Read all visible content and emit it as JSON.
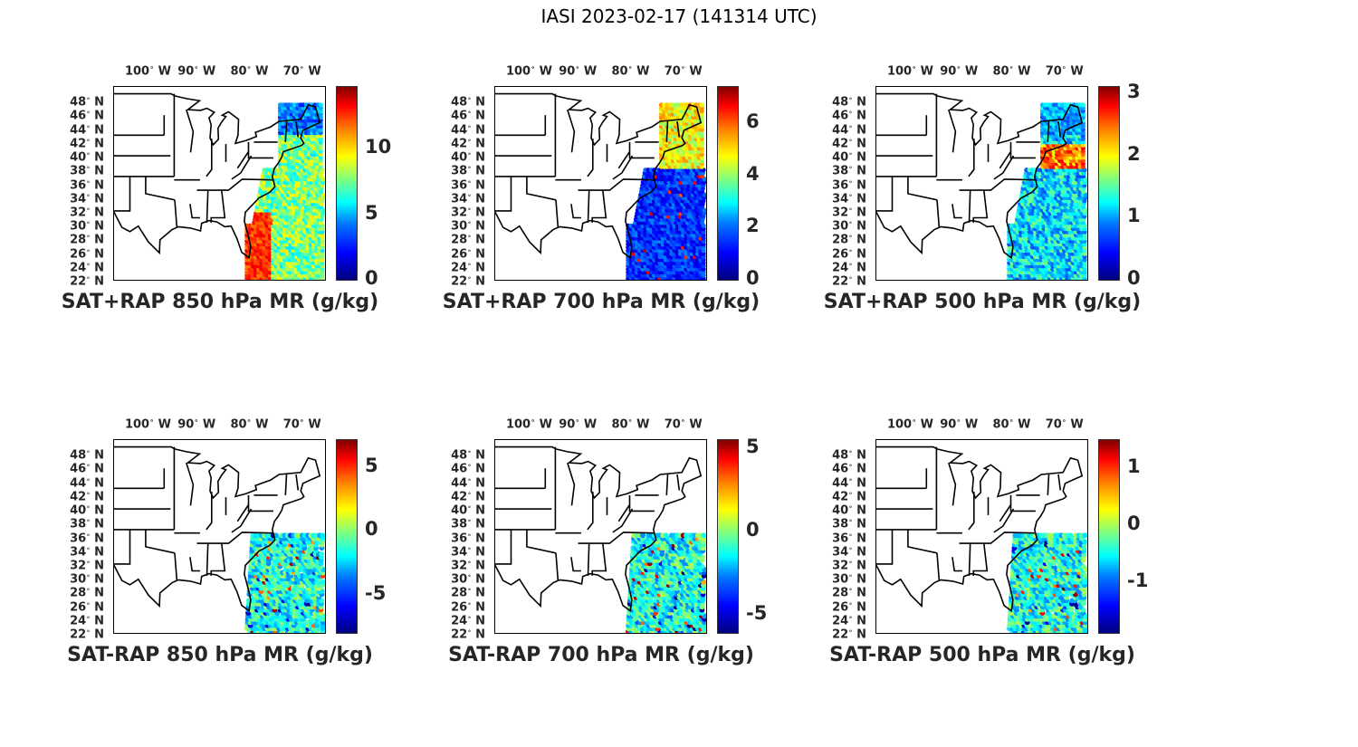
{
  "figure": {
    "title": "IASI 2023-02-17 (141314 UTC)",
    "map": {
      "lon_range": [
        -106,
        -66
      ],
      "lat_range": [
        22,
        50
      ],
      "lon_ticks": [
        {
          "deg": "100",
          "dir": "W",
          "lon": -100
        },
        {
          "deg": "90",
          "dir": "W",
          "lon": -90
        },
        {
          "deg": "80",
          "dir": "W",
          "lon": -80
        },
        {
          "deg": "70",
          "dir": "W",
          "lon": -70
        }
      ],
      "lat_ticks": [
        {
          "deg": "48",
          "dir": "N",
          "lat": 48
        },
        {
          "deg": "46",
          "dir": "N",
          "lat": 46
        },
        {
          "deg": "44",
          "dir": "N",
          "lat": 44
        },
        {
          "deg": "42",
          "dir": "N",
          "lat": 42
        },
        {
          "deg": "40",
          "dir": "N",
          "lat": 40
        },
        {
          "deg": "38",
          "dir": "N",
          "lat": 38
        },
        {
          "deg": "36",
          "dir": "N",
          "lat": 36
        },
        {
          "deg": "34",
          "dir": "N",
          "lat": 34
        },
        {
          "deg": "32",
          "dir": "N",
          "lat": 32
        },
        {
          "deg": "30",
          "dir": "N",
          "lat": 30
        },
        {
          "deg": "28",
          "dir": "N",
          "lat": 28
        },
        {
          "deg": "26",
          "dir": "N",
          "lat": 26
        },
        {
          "deg": "24",
          "dir": "N",
          "lat": 24
        },
        {
          "deg": "22",
          "dir": "N",
          "lat": 22
        }
      ]
    },
    "colormap": "jet",
    "panels": [
      {
        "title": "SAT+RAP 850 hPa MR (g/kg)",
        "clim": [
          0,
          14.7
        ],
        "cticks": [
          {
            "label": "0",
            "v": 0
          },
          {
            "label": "5",
            "v": 5
          },
          {
            "label": "10",
            "v": 10
          }
        ],
        "swath": "full-north"
      },
      {
        "title": "SAT+RAP 700 hPa MR (g/kg)",
        "clim": [
          0,
          7.4
        ],
        "cticks": [
          {
            "label": "0",
            "v": 0
          },
          {
            "label": "2",
            "v": 2
          },
          {
            "label": "4",
            "v": 4
          },
          {
            "label": "6",
            "v": 6
          }
        ],
        "swath": "full-north"
      },
      {
        "title": "SAT+RAP 500 hPa MR (g/kg)",
        "clim": [
          0,
          3.1
        ],
        "cticks": [
          {
            "label": "0",
            "v": 0
          },
          {
            "label": "1",
            "v": 1
          },
          {
            "label": "2",
            "v": 2
          },
          {
            "label": "3",
            "v": 3
          }
        ],
        "swath": "full-north"
      },
      {
        "title": "SAT-RAP 850 hPa MR (g/kg)",
        "clim": [
          -8,
          7.1
        ],
        "cticks": [
          {
            "label": "-5",
            "v": -5
          },
          {
            "label": "0",
            "v": 0
          },
          {
            "label": "5",
            "v": 5
          }
        ],
        "swath": "south"
      },
      {
        "title": "SAT-RAP 700 hPa MR (g/kg)",
        "clim": [
          -6.1,
          5.5
        ],
        "cticks": [
          {
            "label": "-5",
            "v": -5
          },
          {
            "label": "0",
            "v": 0
          },
          {
            "label": "5",
            "v": 5
          }
        ],
        "swath": "south"
      },
      {
        "title": "SAT-RAP 500 hPa MR (g/kg)",
        "clim": [
          -1.9,
          1.5
        ],
        "cticks": [
          {
            "label": "-1",
            "v": -1
          },
          {
            "label": "0",
            "v": 0
          },
          {
            "label": "1",
            "v": 1
          }
        ],
        "swath": "south"
      }
    ]
  }
}
